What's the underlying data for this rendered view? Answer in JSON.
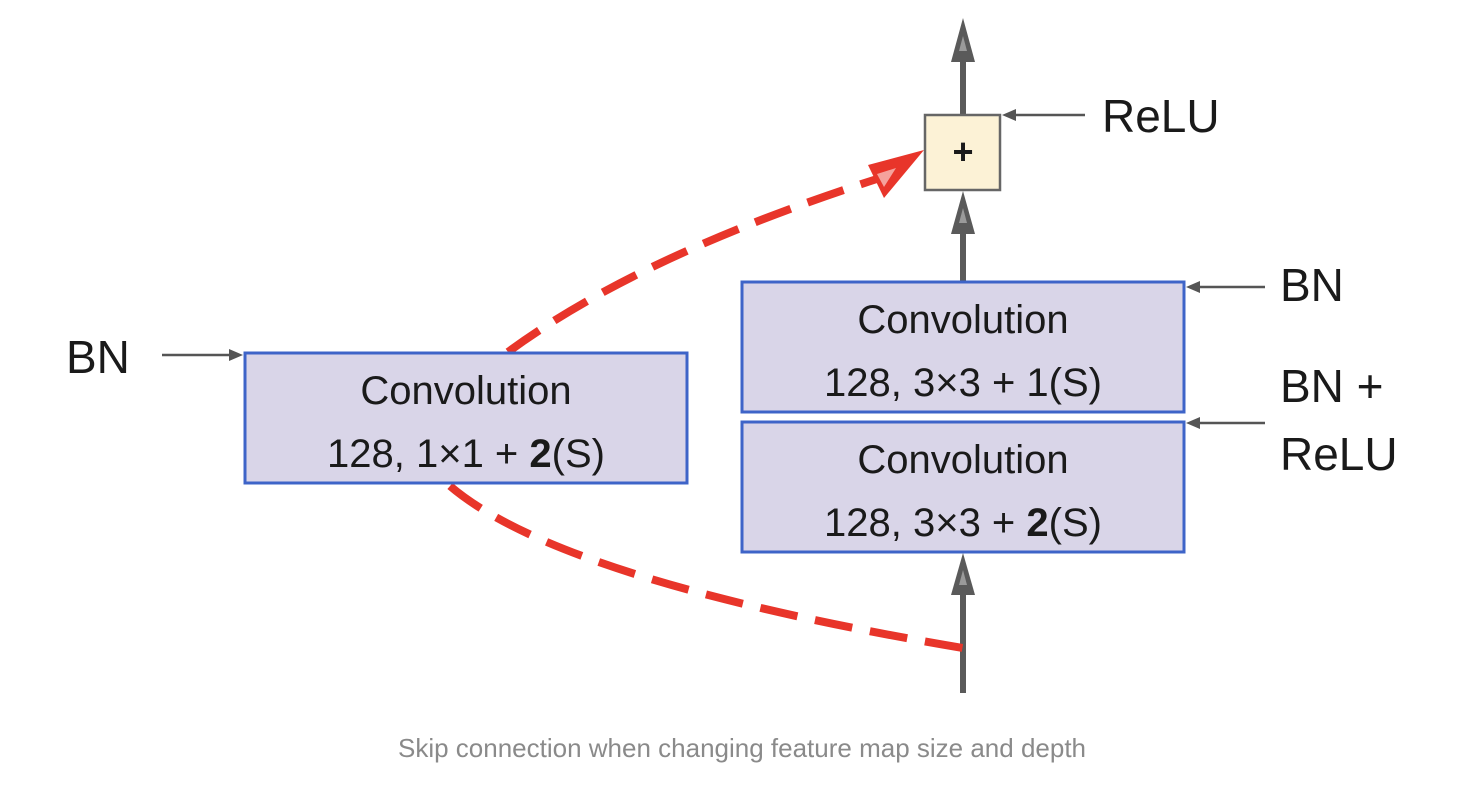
{
  "diagram": {
    "boxes": {
      "shortcut": {
        "line1": "Convolution",
        "line2_prefix": "128, 1×1 + ",
        "line2_bold": "2",
        "line2_suffix": "(S)"
      },
      "conv_top": {
        "line1": "Convolution",
        "line2": "128, 3×3 + 1(S)"
      },
      "conv_bottom": {
        "line1": "Convolution",
        "line2_prefix": "128, 3×3 + ",
        "line2_bold": "2",
        "line2_suffix": "(S)"
      },
      "add": {
        "symbol": "+"
      }
    },
    "labels": {
      "relu": "ReLU",
      "bn_top": "BN",
      "bn_relu_line1": "BN +",
      "bn_relu_line2": "ReLU",
      "bn_left": "BN"
    },
    "colors": {
      "conv_fill": "#d9d5e8",
      "conv_stroke": "#3e64c8",
      "add_fill": "#fcf2d6",
      "add_stroke": "#666666",
      "main_arrow": "#5a5a5a",
      "skip_dashed": "#e8352a",
      "side_arrow": "#555555"
    }
  },
  "caption": "Skip connection when changing feature map size and depth"
}
